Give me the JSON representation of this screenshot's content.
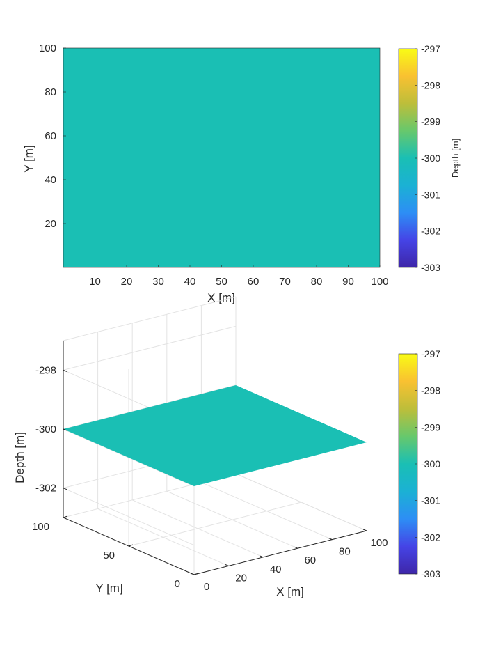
{
  "chart_data": [
    {
      "type": "heatmap",
      "xlabel": "X [m]",
      "ylabel": "Y [m]",
      "xlim": [
        0,
        100
      ],
      "ylim": [
        0,
        100
      ],
      "xticks": [
        10,
        20,
        30,
        40,
        50,
        60,
        70,
        80,
        90,
        100
      ],
      "yticks": [
        20,
        40,
        60,
        80,
        100
      ],
      "surface_value": -300,
      "grid": false,
      "colorbar": {
        "label": "Depth [m]",
        "limits": [
          -303,
          -297
        ],
        "ticks": [
          -297,
          -298,
          -299,
          -300,
          -301,
          -302,
          -303
        ],
        "colormap": "parula"
      }
    },
    {
      "type": "surface3d",
      "xlabel": "X [m]",
      "ylabel": "Y [m]",
      "zlabel": "Depth [m]",
      "xlim": [
        0,
        100
      ],
      "ylim": [
        0,
        100
      ],
      "zlim": [
        -303,
        -297
      ],
      "xticks": [
        0,
        20,
        40,
        60,
        80,
        100
      ],
      "yticks": [
        0,
        50,
        100
      ],
      "zticks": [
        -298,
        -300,
        -302
      ],
      "surface_value": -300,
      "grid": true,
      "colorbar": {
        "limits": [
          -303,
          -297
        ],
        "ticks": [
          -297,
          -298,
          -299,
          -300,
          -301,
          -302,
          -303
        ],
        "colormap": "parula"
      }
    }
  ],
  "colors": {
    "surface": "#1abfb4",
    "axis": "#262626",
    "grid": "#e3e3e3"
  }
}
